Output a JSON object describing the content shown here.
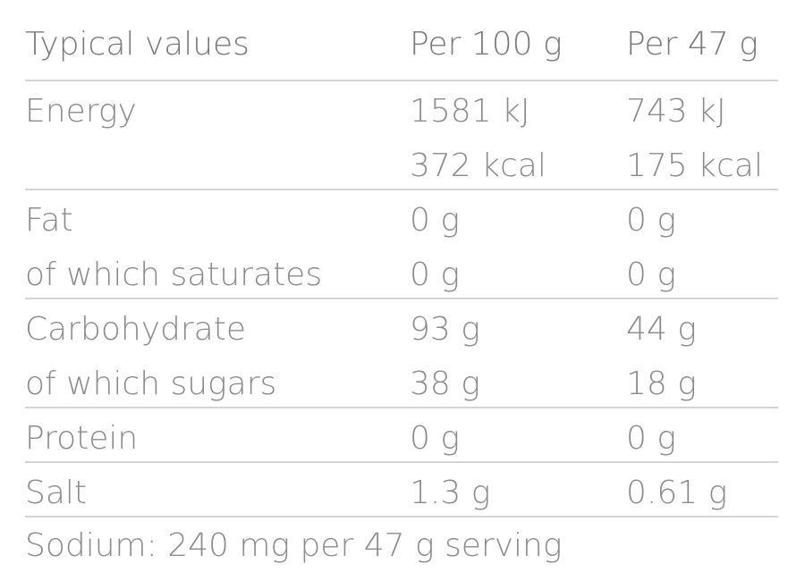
{
  "table": {
    "header": [
      "Typical values",
      "Per 100 g",
      "Per 47 g"
    ],
    "groups": [
      {
        "rows": [
          [
            "Energy",
            "1581 kJ",
            "743 kJ"
          ],
          [
            null,
            "372 kcal",
            "175 kcal"
          ]
        ]
      },
      {
        "rows": [
          [
            "Fat",
            "0 g",
            "0 g"
          ],
          [
            "of which saturates",
            "0 g",
            "0 g"
          ]
        ]
      },
      {
        "rows": [
          [
            "Carbohydrate",
            "93 g",
            "44 g"
          ],
          [
            "of which sugars",
            "38 g",
            "18 g"
          ]
        ]
      },
      {
        "rows": [
          [
            "Protein",
            "0 g",
            "0 g"
          ]
        ]
      },
      {
        "rows": [
          [
            "Salt",
            "1.3 g",
            "0.61 g"
          ]
        ]
      }
    ],
    "footer": "Sodium: 240 mg per 47 g serving"
  }
}
